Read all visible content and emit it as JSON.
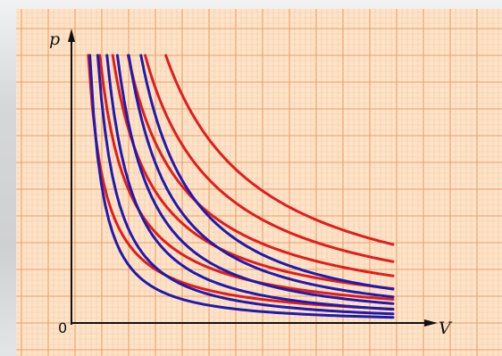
{
  "axes": {
    "y_label": "p",
    "x_label": "V",
    "origin_label": "0"
  },
  "colors": {
    "paper": "#fde4c8",
    "grid_minor": "#f7c7a4",
    "grid_major": "#ee9c68",
    "axis": "#111111",
    "red_curves": "#e01d1d",
    "blue_curves": "#1f1ab0"
  },
  "red_curves": [
    {
      "constant": 6.27
    },
    {
      "constant": 10.6
    },
    {
      "constant": 15.4
    },
    {
      "constant": 21.1
    },
    {
      "constant": 27.5
    },
    {
      "constant": 35.2
    }
  ],
  "blue_curves": [
    {
      "constant": 6.02,
      "exponent": 1.35
    },
    {
      "constant": 9.73,
      "exponent": 1.35
    },
    {
      "constant": 14.62,
      "exponent": 1.35
    },
    {
      "constant": 20.7,
      "exponent": 1.35
    },
    {
      "constant": 27.9,
      "exponent": 1.35
    },
    {
      "constant": 36.2,
      "exponent": 1.35
    }
  ]
}
